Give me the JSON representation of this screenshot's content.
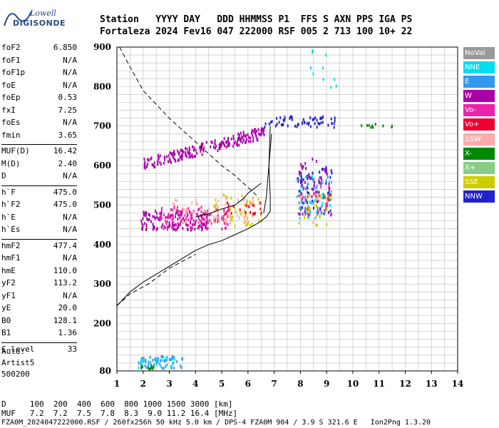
{
  "logo": {
    "line1": "Lowell",
    "line2": "DIGISONDE"
  },
  "header": {
    "line1": "Station   YYYY DAY   DDD HHMMSS P1  FFS S AXN PPS IGA PS",
    "line2": "Fortaleza 2024 Fev16 047 222000 RSF 005 2 713 100 10+ 22"
  },
  "params": [
    {
      "k": "foF2",
      "v": "6.850"
    },
    {
      "k": "foF1",
      "v": "N/A"
    },
    {
      "k": "foF1p",
      "v": "N/A"
    },
    {
      "k": "foE",
      "v": "N/A"
    },
    {
      "k": "foEp",
      "v": "0.53"
    },
    {
      "k": "fxI",
      "v": "7.25"
    },
    {
      "k": "foEs",
      "v": "N/A"
    },
    {
      "k": "fmin",
      "v": "3.65"
    },
    {
      "k": "MUF(D)",
      "v": "16.42",
      "sep": true
    },
    {
      "k": "M(D)",
      "v": "2.40"
    },
    {
      "k": "D",
      "v": "N/A"
    },
    {
      "k": "h`F",
      "v": "475.0",
      "sep": true
    },
    {
      "k": "h`F2",
      "v": "475.0"
    },
    {
      "k": "h`E",
      "v": "N/A"
    },
    {
      "k": "h`Es",
      "v": "N/A"
    },
    {
      "k": "hmF2",
      "v": "477.4",
      "sep": true
    },
    {
      "k": "hmF1",
      "v": "N/A"
    },
    {
      "k": "hmE",
      "v": "110.0"
    },
    {
      "k": "yF2",
      "v": "113.2"
    },
    {
      "k": "yF1",
      "v": "N/A"
    },
    {
      "k": "yE",
      "v": "20.0"
    },
    {
      "k": "B0",
      "v": "128.1"
    },
    {
      "k": "B1",
      "v": "1.36"
    },
    {
      "k": "C-level",
      "v": "33",
      "sep": true
    }
  ],
  "auto": {
    "l1": "Auto:",
    "l2": "Artist5",
    "l3": "500200"
  },
  "legend": [
    {
      "label": "NoVal",
      "color": "#999999"
    },
    {
      "label": "NNE",
      "color": "#00ddee"
    },
    {
      "label": "E",
      "color": "#3399ee"
    },
    {
      "label": "W",
      "color": "#aa00aa"
    },
    {
      "label": "Vo-",
      "color": "#ee22aa"
    },
    {
      "label": "Vo+",
      "color": "#ee0033"
    },
    {
      "label": "SSW",
      "color": "#ffaaaa"
    },
    {
      "label": "X-",
      "color": "#008800"
    },
    {
      "label": "X+",
      "color": "#88cc88"
    },
    {
      "label": "SSE",
      "color": "#cccc00"
    },
    {
      "label": "NNW",
      "color": "#2222cc"
    }
  ],
  "bottom": {
    "l1": "D     100  200  400  600  800 1000 1500 3000 [km]",
    "l2": "MUF   7.2  7.2  7.5  7.8  8.3  9.0 11.2 16.4 [MHz]",
    "l3": "FZA0M_2024047222000.RSF / 260fx256h 50 kHz 5.0 km / DPS-4 FZA0M 904 / 3.9 S 321.6 E   Ion2Png 1.3.20"
  },
  "chart_data": {
    "type": "scatter",
    "xlim": [
      1,
      14
    ],
    "ylim": [
      80,
      900
    ],
    "xticks": [
      1,
      2,
      3,
      4,
      5,
      6,
      7,
      8,
      9,
      10,
      11,
      12,
      13,
      14
    ],
    "yticks": [
      80,
      200,
      300,
      400,
      500,
      600,
      700,
      800,
      900
    ],
    "grid": true,
    "curves": [
      {
        "name": "profile",
        "style": "solid",
        "points": [
          [
            1.0,
            245
          ],
          [
            1.5,
            280
          ],
          [
            2.0,
            305
          ],
          [
            2.5,
            325
          ],
          [
            3.0,
            345
          ],
          [
            3.5,
            365
          ],
          [
            4.0,
            385
          ],
          [
            4.5,
            400
          ],
          [
            5.0,
            410
          ],
          [
            5.5,
            425
          ],
          [
            6.0,
            440
          ],
          [
            6.4,
            455
          ],
          [
            6.7,
            470
          ],
          [
            6.85,
            485
          ],
          [
            6.85,
            520
          ],
          [
            6.8,
            600
          ],
          [
            6.85,
            700
          ]
        ]
      },
      {
        "name": "extrapolated",
        "style": "dashed",
        "points": [
          [
            1.0,
            245
          ],
          [
            1.5,
            275
          ],
          [
            2.2,
            300
          ],
          [
            3.0,
            340
          ],
          [
            4.0,
            375
          ]
        ]
      },
      {
        "name": "lower-trace",
        "style": "solid",
        "points": [
          [
            4.0,
            470
          ],
          [
            4.5,
            478
          ],
          [
            5.0,
            490
          ],
          [
            5.5,
            500
          ],
          [
            5.8,
            515
          ],
          [
            6.0,
            530
          ],
          [
            6.3,
            545
          ],
          [
            6.5,
            555
          ]
        ]
      },
      {
        "name": "upper-dashed",
        "style": "dashed",
        "points": [
          [
            1.1,
            900
          ],
          [
            1.5,
            850
          ],
          [
            2.0,
            790
          ],
          [
            3.0,
            720
          ],
          [
            4.0,
            660
          ],
          [
            5.0,
            600
          ],
          [
            5.5,
            575
          ],
          [
            6.0,
            545
          ],
          [
            6.4,
            520
          ]
        ]
      },
      {
        "name": "vertical-right",
        "style": "solid",
        "points": [
          [
            6.6,
            480
          ],
          [
            6.7,
            520
          ],
          [
            6.75,
            560
          ],
          [
            6.8,
            600
          ],
          [
            6.85,
            640
          ],
          [
            6.9,
            680
          ]
        ]
      }
    ],
    "clusters": [
      {
        "color": "#aa00aa",
        "xr": [
          2.0,
          6.6
        ],
        "yr": [
          590,
          700
        ],
        "n": 220,
        "slope": true
      },
      {
        "color": "#aa00aa",
        "xr": [
          1.9,
          4.5
        ],
        "yr": [
          440,
          490
        ],
        "n": 140
      },
      {
        "color": "#ee22aa",
        "xr": [
          2.6,
          5.3
        ],
        "yr": [
          440,
          500
        ],
        "n": 110
      },
      {
        "color": "#ffaaaa",
        "xr": [
          3.0,
          6.4
        ],
        "yr": [
          460,
          520
        ],
        "n": 70
      },
      {
        "color": "#cccc00",
        "xr": [
          4.5,
          6.5
        ],
        "yr": [
          450,
          530
        ],
        "n": 50
      },
      {
        "color": "#2222cc",
        "xr": [
          6.6,
          9.3
        ],
        "yr": [
          700,
          730
        ],
        "n": 60
      },
      {
        "color": "#2222cc",
        "xr": [
          7.8,
          9.2
        ],
        "yr": [
          480,
          600
        ],
        "n": 60
      },
      {
        "color": "#00ddee",
        "xr": [
          7.8,
          9.2
        ],
        "yr": [
          470,
          580
        ],
        "n": 40
      },
      {
        "color": "#3399ee",
        "xr": [
          7.9,
          9.1
        ],
        "yr": [
          480,
          580
        ],
        "n": 40
      },
      {
        "color": "#cccc00",
        "xr": [
          7.9,
          9.2
        ],
        "yr": [
          450,
          540
        ],
        "n": 40
      },
      {
        "color": "#aa00aa",
        "xr": [
          7.9,
          9.1
        ],
        "yr": [
          520,
          620
        ],
        "n": 40
      },
      {
        "color": "#ee22aa",
        "xr": [
          7.9,
          9.3
        ],
        "yr": [
          470,
          560
        ],
        "n": 30
      },
      {
        "color": "#3399ee",
        "xr": [
          1.8,
          3.5
        ],
        "yr": [
          90,
          120
        ],
        "n": 60
      },
      {
        "color": "#00ddee",
        "xr": [
          1.8,
          3.3
        ],
        "yr": [
          90,
          115
        ],
        "n": 25
      },
      {
        "color": "#008800",
        "xr": [
          1.9,
          2.4
        ],
        "yr": [
          88,
          95
        ],
        "n": 10
      },
      {
        "color": "#00ddee",
        "xr": [
          8.2,
          9.4
        ],
        "yr": [
          760,
          900
        ],
        "n": 10
      },
      {
        "color": "#008800",
        "xr": [
          10.2,
          11.6
        ],
        "yr": [
          700,
          710
        ],
        "n": 10
      },
      {
        "color": "#ee0033",
        "xr": [
          5.0,
          6.5
        ],
        "yr": [
          480,
          510
        ],
        "n": 20
      }
    ]
  }
}
